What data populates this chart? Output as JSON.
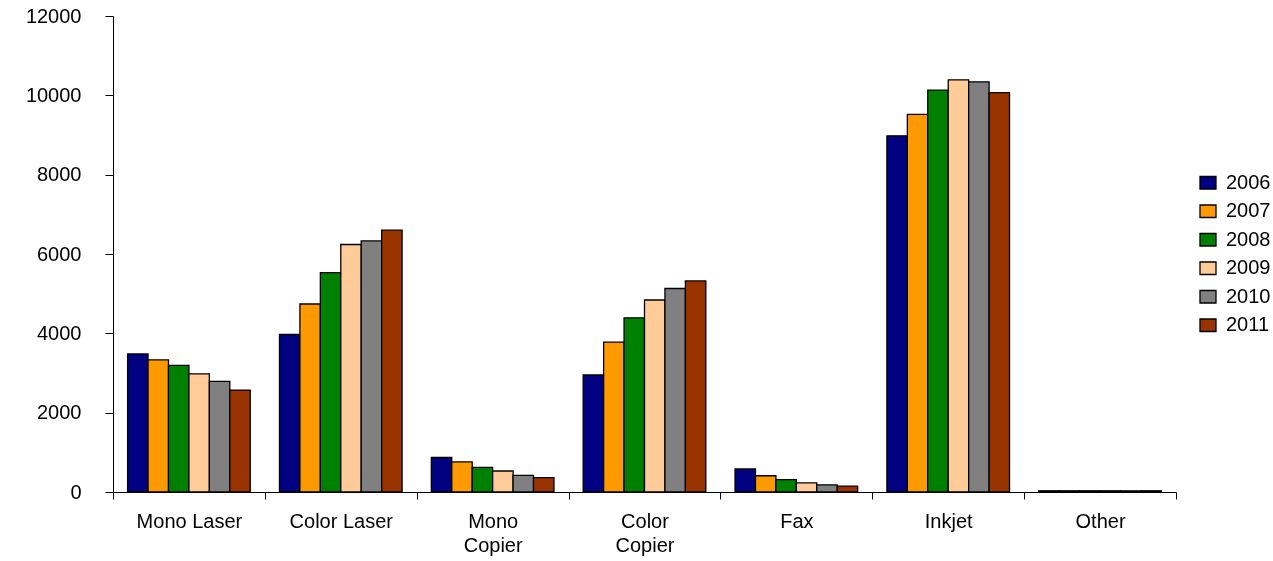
{
  "chart_data": {
    "type": "bar",
    "categories": [
      "Mono Laser",
      "Color Laser",
      "Mono\nCopier",
      "Color\nCopier",
      "Fax",
      "Inkjet",
      "Other"
    ],
    "series": [
      {
        "name": "2006",
        "color": "#000080",
        "values": [
          3480,
          3970,
          870,
          2950,
          580,
          8980,
          30
        ]
      },
      {
        "name": "2007",
        "color": "#ff9900",
        "values": [
          3330,
          4740,
          760,
          3780,
          410,
          9520,
          30
        ]
      },
      {
        "name": "2008",
        "color": "#008000",
        "values": [
          3190,
          5530,
          620,
          4390,
          310,
          10130,
          30
        ]
      },
      {
        "name": "2009",
        "color": "#ffcc99",
        "values": [
          2980,
          6240,
          530,
          4840,
          230,
          10390,
          30
        ]
      },
      {
        "name": "2010",
        "color": "#808080",
        "values": [
          2790,
          6330,
          420,
          5130,
          180,
          10340,
          30
        ]
      },
      {
        "name": "2011",
        "color": "#993300",
        "values": [
          2570,
          6600,
          360,
          5320,
          150,
          10070,
          30
        ]
      }
    ],
    "ylim": [
      0,
      12000
    ],
    "yticks": [
      0,
      2000,
      4000,
      6000,
      8000,
      10000,
      12000
    ],
    "grid": false,
    "legend": "right"
  }
}
